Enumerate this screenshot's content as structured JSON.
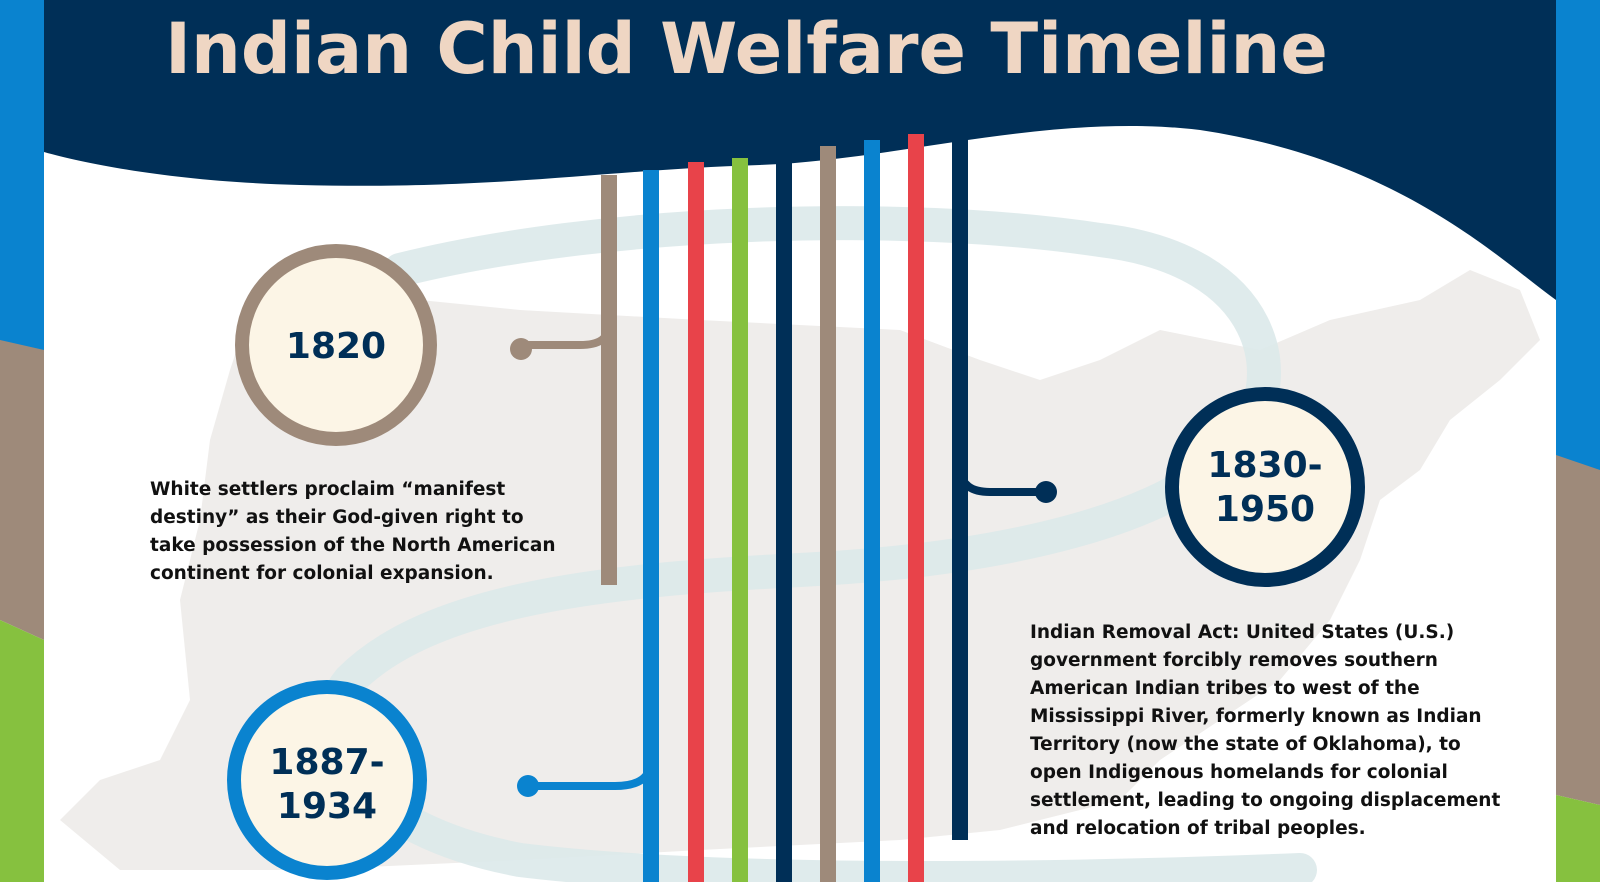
{
  "header": {
    "title": "Indian Child Welfare Timeline"
  },
  "colors": {
    "navy": "#002f57",
    "blue": "#0a83cf",
    "red": "#e8434a",
    "green": "#86c13f",
    "brown": "#9e8a7a",
    "cream": "#fcf5e6",
    "title": "#efd6c3"
  },
  "timeline": {
    "events": [
      {
        "id": "1820",
        "year": "1820",
        "description": "White settlers proclaim “manifest destiny” as their God-given right to take possession of the North American continent for colonial expansion."
      },
      {
        "id": "1830-1950",
        "year_line1": "1830-",
        "year_line2": "1950",
        "description_lead": "Indian Removal Act:",
        "description": "United States (U.S.) government forcibly removes southern American Indian tribes to west of the Mississippi River, formerly known as Indian Territory (now the state of Oklahoma), to open Indigenous homelands for colonial settlement, leading to ongoing displacement and relocation of tribal peoples."
      },
      {
        "id": "1887-1934",
        "year_line1": "1887-",
        "year_line2": "1934"
      }
    ]
  }
}
